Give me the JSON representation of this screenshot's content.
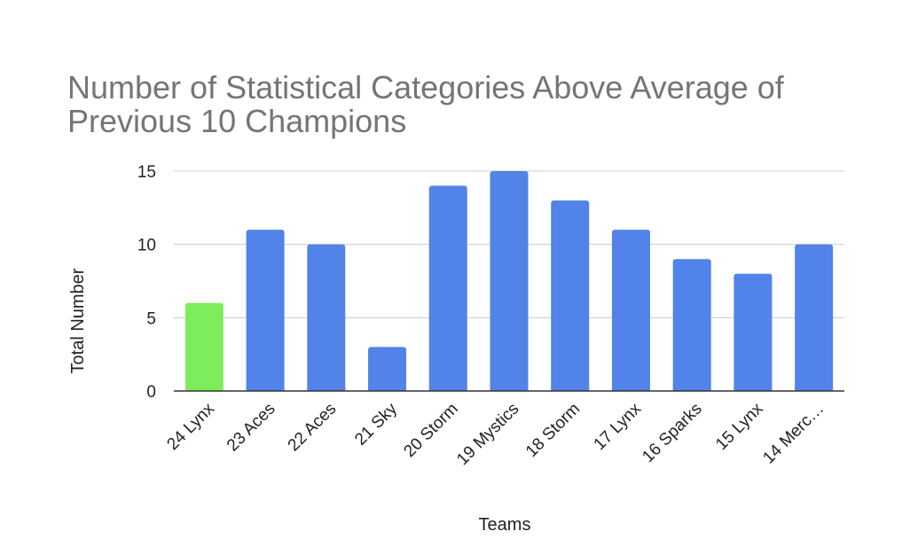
{
  "chart_data": {
    "type": "bar",
    "title": "Number of Statistical Categories Above Average of Previous 10 Champions",
    "xlabel": "Teams",
    "ylabel": "Total Number",
    "categories": [
      "24 Lynx",
      "23 Aces",
      "22 Aces",
      "21 Sky",
      "20 Storm",
      "19 Mystics",
      "18 Storm",
      "17 Lynx",
      "16 Sparks",
      "15 Lynx",
      "14 Merc…"
    ],
    "values": [
      6,
      11,
      10,
      3,
      14,
      15,
      13,
      11,
      9,
      8,
      10
    ],
    "bar_colors": [
      "#7eed5c",
      "#5283e8",
      "#5283e8",
      "#5283e8",
      "#5283e8",
      "#5283e8",
      "#5283e8",
      "#5283e8",
      "#5283e8",
      "#5283e8",
      "#5283e8"
    ],
    "ylim": [
      0,
      15
    ],
    "yticks": [
      0,
      5,
      10,
      15
    ],
    "grid": true,
    "legend": "none"
  }
}
